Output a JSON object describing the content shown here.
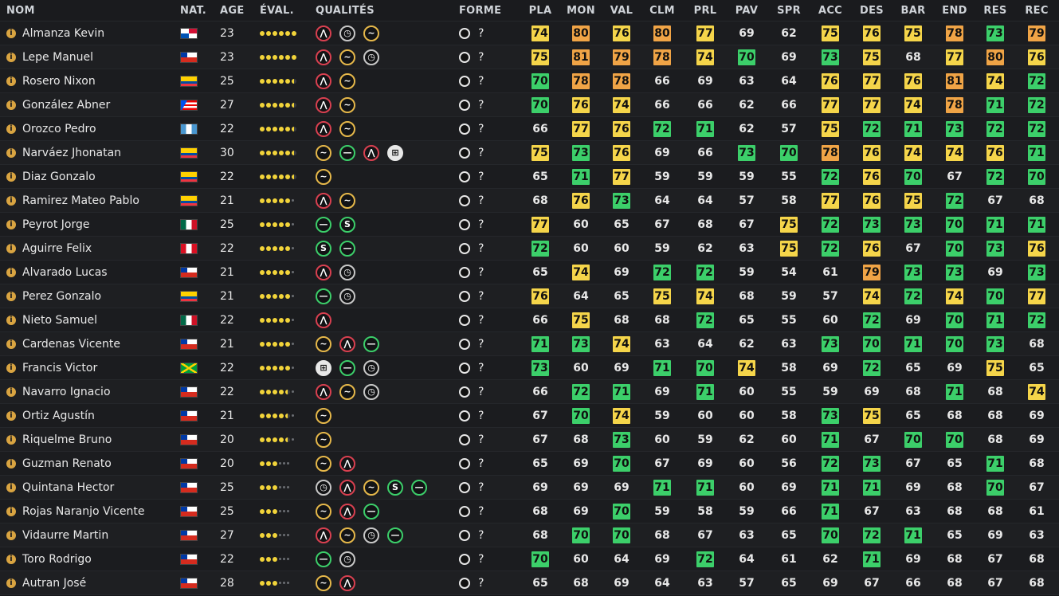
{
  "headers": [
    "NOM",
    "NAT.",
    "AGE",
    "ÉVAL.",
    "QUALITÉS",
    "FORME",
    "PLA",
    "MON",
    "VAL",
    "CLM",
    "PRL",
    "PAV",
    "SPR",
    "ACC",
    "DES",
    "BAR",
    "END",
    "RES",
    "REC"
  ],
  "flags": {
    "panama": [
      "#ffffff",
      "#d21034",
      "#0052b4"
    ],
    "chile": [
      "#ffffff",
      "#d52b1e",
      "#0039a6"
    ],
    "ecuador": [
      "#ffd100",
      "#034ea2",
      "#ef3340"
    ],
    "puerto-rico": [
      "#ed0000",
      "#ffffff",
      "#0050f0"
    ],
    "guatemala": [
      "#4997d0",
      "#ffffff",
      "#4997d0"
    ],
    "mexico": [
      "#006847",
      "#ffffff",
      "#ce1126"
    ],
    "peru": [
      "#d91023",
      "#ffffff",
      "#d91023"
    ],
    "jamaica": [
      "#009b3a",
      "#fed100",
      "#000000"
    ]
  },
  "color_legend": {
    "g": "#3ccf6a",
    "y": "#f5d54a",
    "o": "#f0a446",
    "r": "#ea7a3c"
  },
  "rows": [
    {
      "name": "Almanza Kevin",
      "flag": "panama",
      "age": "23",
      "rating": "6",
      "quals": [
        "speed",
        "clock",
        "wave"
      ],
      "forme": "?",
      "stats": [
        "74",
        "80",
        "76",
        "80",
        "77",
        "69",
        "62",
        "75",
        "76",
        "75",
        "78",
        "73",
        "79"
      ],
      "colors": [
        "y",
        "o",
        "y",
        "o",
        "y",
        "",
        "",
        "y",
        "y",
        "y",
        "o",
        "g",
        "o"
      ]
    },
    {
      "name": "Lepe Manuel",
      "flag": "chile",
      "age": "23",
      "rating": "6",
      "quals": [
        "speed",
        "wave",
        "clock"
      ],
      "forme": "?",
      "stats": [
        "75",
        "81",
        "79",
        "78",
        "74",
        "70",
        "69",
        "73",
        "75",
        "68",
        "77",
        "80",
        "76"
      ],
      "colors": [
        "y",
        "o",
        "o",
        "o",
        "y",
        "g",
        "",
        "g",
        "y",
        "",
        "y",
        "o",
        "y"
      ]
    },
    {
      "name": "Rosero Nixon",
      "flag": "ecuador",
      "age": "25",
      "rating": "5.5",
      "quals": [
        "speed",
        "wave"
      ],
      "forme": "?",
      "stats": [
        "70",
        "78",
        "78",
        "66",
        "69",
        "63",
        "64",
        "76",
        "77",
        "76",
        "81",
        "74",
        "72"
      ],
      "colors": [
        "g",
        "o",
        "o",
        "",
        "",
        "",
        "",
        "y",
        "y",
        "y",
        "o",
        "y",
        "g"
      ]
    },
    {
      "name": "González Abner",
      "flag": "puerto-rico",
      "age": "27",
      "rating": "5.5",
      "quals": [
        "speed",
        "wave"
      ],
      "forme": "?",
      "stats": [
        "70",
        "76",
        "74",
        "66",
        "66",
        "62",
        "66",
        "77",
        "77",
        "74",
        "78",
        "71",
        "72"
      ],
      "colors": [
        "g",
        "y",
        "y",
        "",
        "",
        "",
        "",
        "y",
        "y",
        "y",
        "o",
        "g",
        "g"
      ]
    },
    {
      "name": "Orozco Pedro",
      "flag": "guatemala",
      "age": "22",
      "rating": "5.5",
      "quals": [
        "speed",
        "wave"
      ],
      "forme": "?",
      "stats": [
        "66",
        "77",
        "76",
        "72",
        "71",
        "62",
        "57",
        "75",
        "72",
        "71",
        "73",
        "72",
        "72"
      ],
      "colors": [
        "",
        "y",
        "y",
        "g",
        "g",
        "",
        "",
        "y",
        "g",
        "g",
        "g",
        "g",
        "g"
      ]
    },
    {
      "name": "Narváez Jhonatan",
      "flag": "ecuador",
      "age": "30",
      "rating": "5.5",
      "quals": [
        "wave",
        "dash",
        "speed",
        "grid"
      ],
      "forme": "?",
      "stats": [
        "75",
        "73",
        "76",
        "69",
        "66",
        "73",
        "70",
        "78",
        "76",
        "74",
        "74",
        "76",
        "71"
      ],
      "colors": [
        "y",
        "g",
        "y",
        "",
        "",
        "g",
        "g",
        "o",
        "y",
        "y",
        "y",
        "y",
        "g"
      ]
    },
    {
      "name": "Diaz Gonzalo",
      "flag": "ecuador",
      "age": "22",
      "rating": "5.5",
      "quals": [
        "wave"
      ],
      "forme": "?",
      "stats": [
        "65",
        "71",
        "77",
        "59",
        "59",
        "59",
        "55",
        "72",
        "76",
        "70",
        "67",
        "72",
        "70"
      ],
      "colors": [
        "",
        "g",
        "y",
        "",
        "",
        "",
        "",
        "g",
        "y",
        "g",
        "",
        "g",
        "g"
      ]
    },
    {
      "name": "Ramirez Mateo Pablo",
      "flag": "ecuador",
      "age": "21",
      "rating": "5",
      "quals": [
        "speed",
        "wave"
      ],
      "forme": "?",
      "stats": [
        "68",
        "76",
        "73",
        "64",
        "64",
        "57",
        "58",
        "77",
        "76",
        "75",
        "72",
        "67",
        "68"
      ],
      "colors": [
        "",
        "y",
        "g",
        "",
        "",
        "",
        "",
        "y",
        "y",
        "y",
        "g",
        "",
        ""
      ]
    },
    {
      "name": "Peyrot Jorge",
      "flag": "mexico",
      "age": "25",
      "rating": "5",
      "quals": [
        "dash",
        "s"
      ],
      "forme": "?",
      "stats": [
        "77",
        "60",
        "65",
        "67",
        "68",
        "67",
        "75",
        "72",
        "73",
        "73",
        "70",
        "71",
        "71"
      ],
      "colors": [
        "y",
        "",
        "",
        "",
        "",
        "",
        "y",
        "g",
        "g",
        "g",
        "g",
        "g",
        "g"
      ]
    },
    {
      "name": "Aguirre Felix",
      "flag": "peru",
      "age": "22",
      "rating": "5",
      "quals": [
        "s",
        "dash"
      ],
      "forme": "?",
      "stats": [
        "72",
        "60",
        "60",
        "59",
        "62",
        "63",
        "75",
        "72",
        "76",
        "67",
        "70",
        "73",
        "76"
      ],
      "colors": [
        "g",
        "",
        "",
        "",
        "",
        "",
        "y",
        "g",
        "y",
        "",
        "g",
        "g",
        "y"
      ]
    },
    {
      "name": "Alvarado Lucas",
      "flag": "chile",
      "age": "21",
      "rating": "5",
      "quals": [
        "speed",
        "clock"
      ],
      "forme": "?",
      "stats": [
        "65",
        "74",
        "69",
        "72",
        "72",
        "59",
        "54",
        "61",
        "79",
        "73",
        "73",
        "69",
        "73"
      ],
      "colors": [
        "",
        "y",
        "",
        "g",
        "g",
        "",
        "",
        "",
        "o",
        "g",
        "g",
        "",
        "g"
      ]
    },
    {
      "name": "Perez Gonzalo",
      "flag": "ecuador",
      "age": "21",
      "rating": "5",
      "quals": [
        "dash",
        "clock"
      ],
      "forme": "?",
      "stats": [
        "76",
        "64",
        "65",
        "75",
        "74",
        "68",
        "59",
        "57",
        "74",
        "72",
        "74",
        "70",
        "77"
      ],
      "colors": [
        "y",
        "",
        "",
        "y",
        "y",
        "",
        "",
        "",
        "y",
        "g",
        "y",
        "g",
        "y"
      ]
    },
    {
      "name": "Nieto Samuel",
      "flag": "mexico",
      "age": "22",
      "rating": "5",
      "quals": [
        "speed"
      ],
      "forme": "?",
      "stats": [
        "66",
        "75",
        "68",
        "68",
        "72",
        "65",
        "55",
        "60",
        "72",
        "69",
        "70",
        "71",
        "72"
      ],
      "colors": [
        "",
        "y",
        "",
        "",
        "g",
        "",
        "",
        "",
        "g",
        "",
        "g",
        "g",
        "g"
      ]
    },
    {
      "name": "Cardenas Vicente",
      "flag": "chile",
      "age": "21",
      "rating": "5",
      "quals": [
        "wave",
        "speed",
        "dash"
      ],
      "forme": "?",
      "stats": [
        "71",
        "73",
        "74",
        "63",
        "64",
        "62",
        "63",
        "73",
        "70",
        "71",
        "70",
        "73",
        "68"
      ],
      "colors": [
        "g",
        "g",
        "y",
        "",
        "",
        "",
        "",
        "g",
        "g",
        "g",
        "g",
        "g",
        ""
      ]
    },
    {
      "name": "Francis Victor",
      "flag": "jamaica",
      "age": "22",
      "rating": "5",
      "quals": [
        "grid",
        "dash",
        "clock"
      ],
      "forme": "?",
      "stats": [
        "73",
        "60",
        "69",
        "71",
        "70",
        "74",
        "58",
        "69",
        "72",
        "65",
        "69",
        "75",
        "65"
      ],
      "colors": [
        "g",
        "",
        "",
        "g",
        "g",
        "y",
        "",
        "",
        "g",
        "",
        "",
        "y",
        ""
      ]
    },
    {
      "name": "Navarro Ignacio",
      "flag": "chile",
      "age": "22",
      "rating": "4.5",
      "quals": [
        "speed",
        "wave",
        "clock"
      ],
      "forme": "?",
      "stats": [
        "66",
        "72",
        "71",
        "69",
        "71",
        "60",
        "55",
        "59",
        "69",
        "68",
        "71",
        "68",
        "74"
      ],
      "colors": [
        "",
        "g",
        "g",
        "",
        "g",
        "",
        "",
        "",
        "",
        "",
        "g",
        "",
        "y"
      ]
    },
    {
      "name": "Ortiz Agustín",
      "flag": "chile",
      "age": "21",
      "rating": "4.5",
      "quals": [
        "wave"
      ],
      "forme": "?",
      "stats": [
        "67",
        "70",
        "74",
        "59",
        "60",
        "60",
        "58",
        "73",
        "75",
        "65",
        "68",
        "68",
        "69"
      ],
      "colors": [
        "",
        "g",
        "y",
        "",
        "",
        "",
        "",
        "g",
        "y",
        "",
        "",
        "",
        ""
      ]
    },
    {
      "name": "Riquelme Bruno",
      "flag": "chile",
      "age": "20",
      "rating": "4.5",
      "quals": [
        "wave"
      ],
      "forme": "?",
      "stats": [
        "67",
        "68",
        "73",
        "60",
        "59",
        "62",
        "60",
        "71",
        "67",
        "70",
        "70",
        "68",
        "69"
      ],
      "colors": [
        "",
        "",
        "g",
        "",
        "",
        "",
        "",
        "g",
        "",
        "g",
        "g",
        "",
        ""
      ]
    },
    {
      "name": "Guzman Renato",
      "flag": "chile",
      "age": "20",
      "rating": "3",
      "quals": [
        "wave",
        "speed"
      ],
      "forme": "?",
      "stats": [
        "65",
        "69",
        "70",
        "67",
        "69",
        "60",
        "56",
        "72",
        "73",
        "67",
        "65",
        "71",
        "68"
      ],
      "colors": [
        "",
        "",
        "g",
        "",
        "",
        "",
        "",
        "g",
        "g",
        "",
        "",
        "g",
        ""
      ]
    },
    {
      "name": "Quintana Hector",
      "flag": "chile",
      "age": "25",
      "rating": "3",
      "quals": [
        "clock",
        "speed",
        "wave",
        "s",
        "dash"
      ],
      "forme": "?",
      "stats": [
        "69",
        "69",
        "69",
        "71",
        "71",
        "60",
        "69",
        "71",
        "71",
        "69",
        "68",
        "70",
        "67"
      ],
      "colors": [
        "",
        "",
        "",
        "g",
        "g",
        "",
        "",
        "g",
        "g",
        "",
        "",
        "g",
        ""
      ]
    },
    {
      "name": "Rojas Naranjo Vicente",
      "flag": "chile",
      "age": "25",
      "rating": "3",
      "quals": [
        "wave",
        "speed",
        "dash"
      ],
      "forme": "?",
      "stats": [
        "68",
        "69",
        "70",
        "59",
        "58",
        "59",
        "66",
        "71",
        "67",
        "63",
        "68",
        "68",
        "61"
      ],
      "colors": [
        "",
        "",
        "g",
        "",
        "",
        "",
        "",
        "g",
        "",
        "",
        "",
        "",
        ""
      ]
    },
    {
      "name": "Vidaurre Martin",
      "flag": "chile",
      "age": "27",
      "rating": "3",
      "quals": [
        "speed",
        "wave",
        "clock",
        "dash"
      ],
      "forme": "?",
      "stats": [
        "68",
        "70",
        "70",
        "68",
        "67",
        "63",
        "65",
        "70",
        "72",
        "71",
        "65",
        "69",
        "63"
      ],
      "colors": [
        "",
        "g",
        "g",
        "",
        "",
        "",
        "",
        "g",
        "g",
        "g",
        "",
        "",
        ""
      ]
    },
    {
      "name": "Toro Rodrigo",
      "flag": "chile",
      "age": "22",
      "rating": "3",
      "quals": [
        "dash",
        "clock"
      ],
      "forme": "?",
      "stats": [
        "70",
        "60",
        "64",
        "69",
        "72",
        "64",
        "61",
        "62",
        "71",
        "69",
        "68",
        "67",
        "68"
      ],
      "colors": [
        "g",
        "",
        "",
        "",
        "g",
        "",
        "",
        "",
        "g",
        "",
        "",
        "",
        ""
      ]
    },
    {
      "name": "Autran José",
      "flag": "chile",
      "age": "28",
      "rating": "3",
      "quals": [
        "wave",
        "speed"
      ],
      "forme": "?",
      "stats": [
        "65",
        "68",
        "69",
        "64",
        "63",
        "57",
        "65",
        "69",
        "67",
        "66",
        "68",
        "67",
        "68"
      ],
      "colors": [
        "",
        "",
        "",
        "",
        "",
        "",
        "",
        "",
        "",
        "",
        "",
        "",
        ""
      ]
    }
  ]
}
